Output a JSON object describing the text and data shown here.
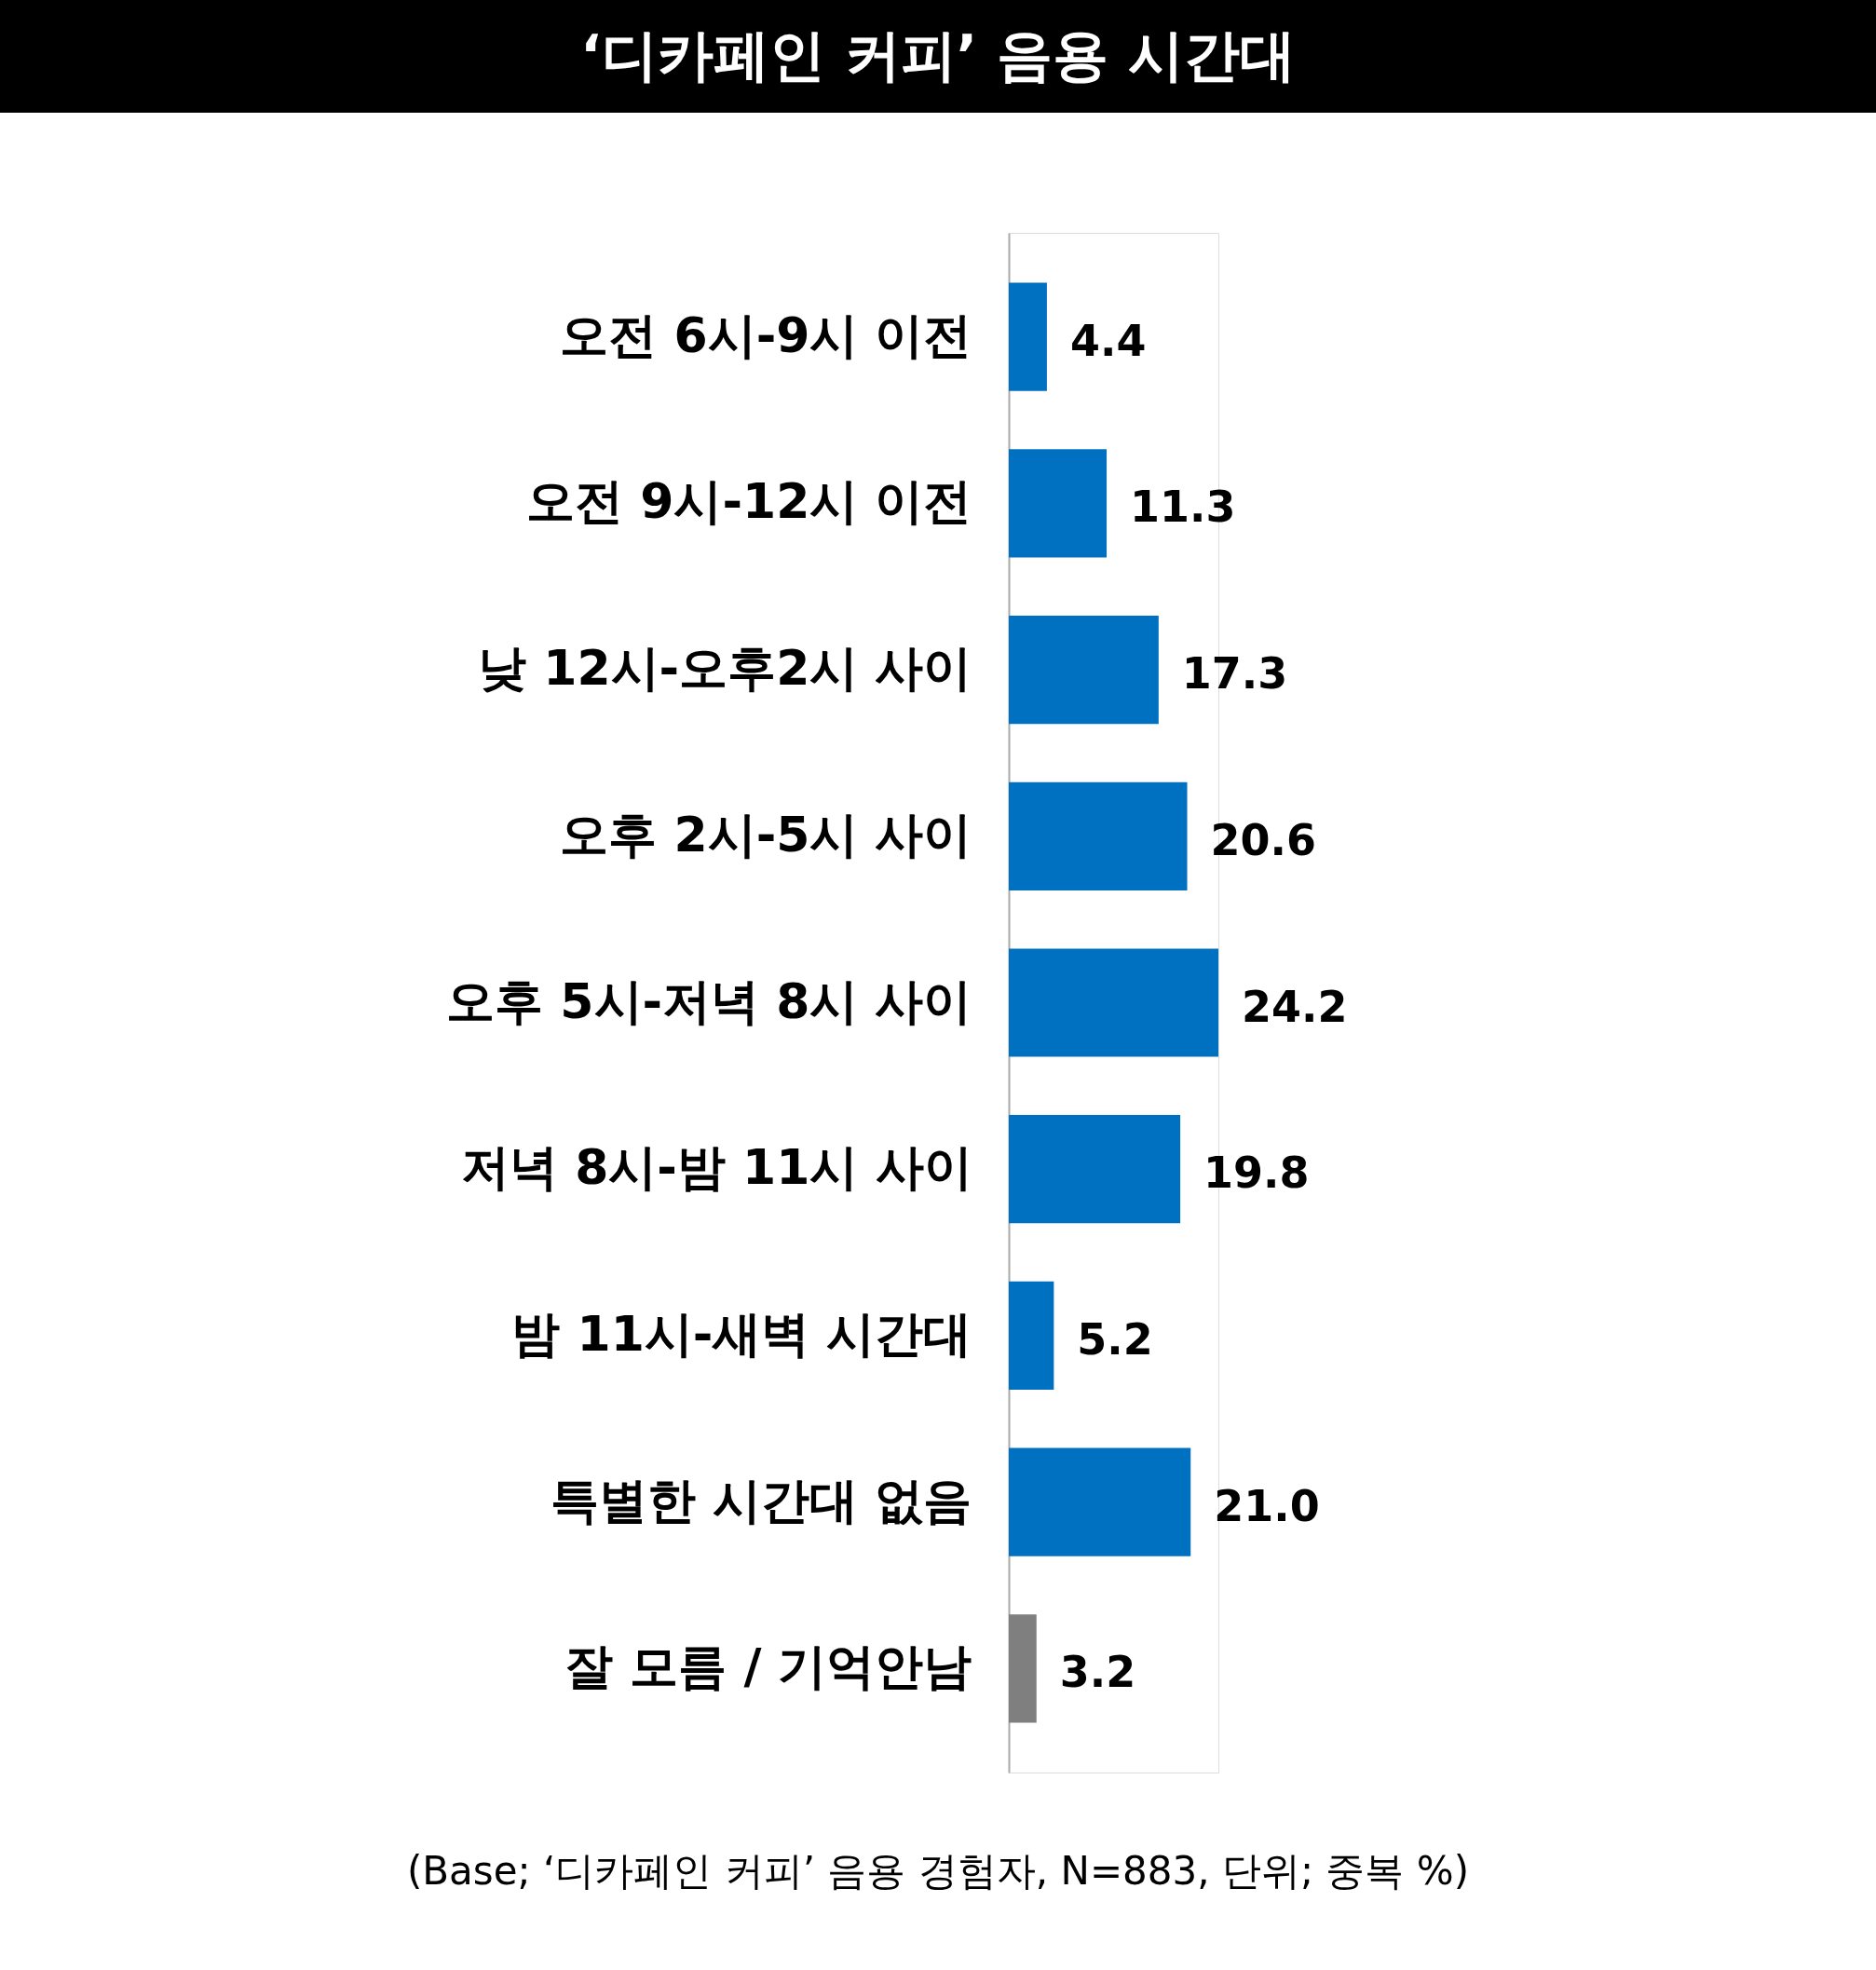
{
  "chart_data": {
    "type": "bar",
    "orientation": "horizontal",
    "title": "‘디카페인 커피’ 음용 시간대",
    "categories": [
      "오전 6시-9시 이전",
      "오전 9시-12시 이전",
      "낮 12시-오후2시 사이",
      "오후 2시-5시 사이",
      "오후 5시-저녁 8시 사이",
      "저녁 8시-밤 11시 사이",
      "밤 11시-새벽 시간대",
      "특별한 시간대 없음",
      "잘 모름 / 기억안남"
    ],
    "values": [
      4.4,
      11.3,
      17.3,
      20.6,
      24.2,
      19.8,
      5.2,
      21.0,
      3.2
    ],
    "value_labels": [
      "4.4",
      "11.3",
      "17.3",
      "20.6",
      "24.2",
      "19.8",
      "5.2",
      "21.0",
      "3.2"
    ],
    "colors": [
      "#0070c0",
      "#0070c0",
      "#0070c0",
      "#0070c0",
      "#0070c0",
      "#0070c0",
      "#0070c0",
      "#0070c0",
      "#7f7f7f"
    ],
    "annotations": [
      "(Base; ‘디카페인 커피’ 음용 경험자, N=883, 단위; 중복 %)"
    ],
    "grid": false
  }
}
